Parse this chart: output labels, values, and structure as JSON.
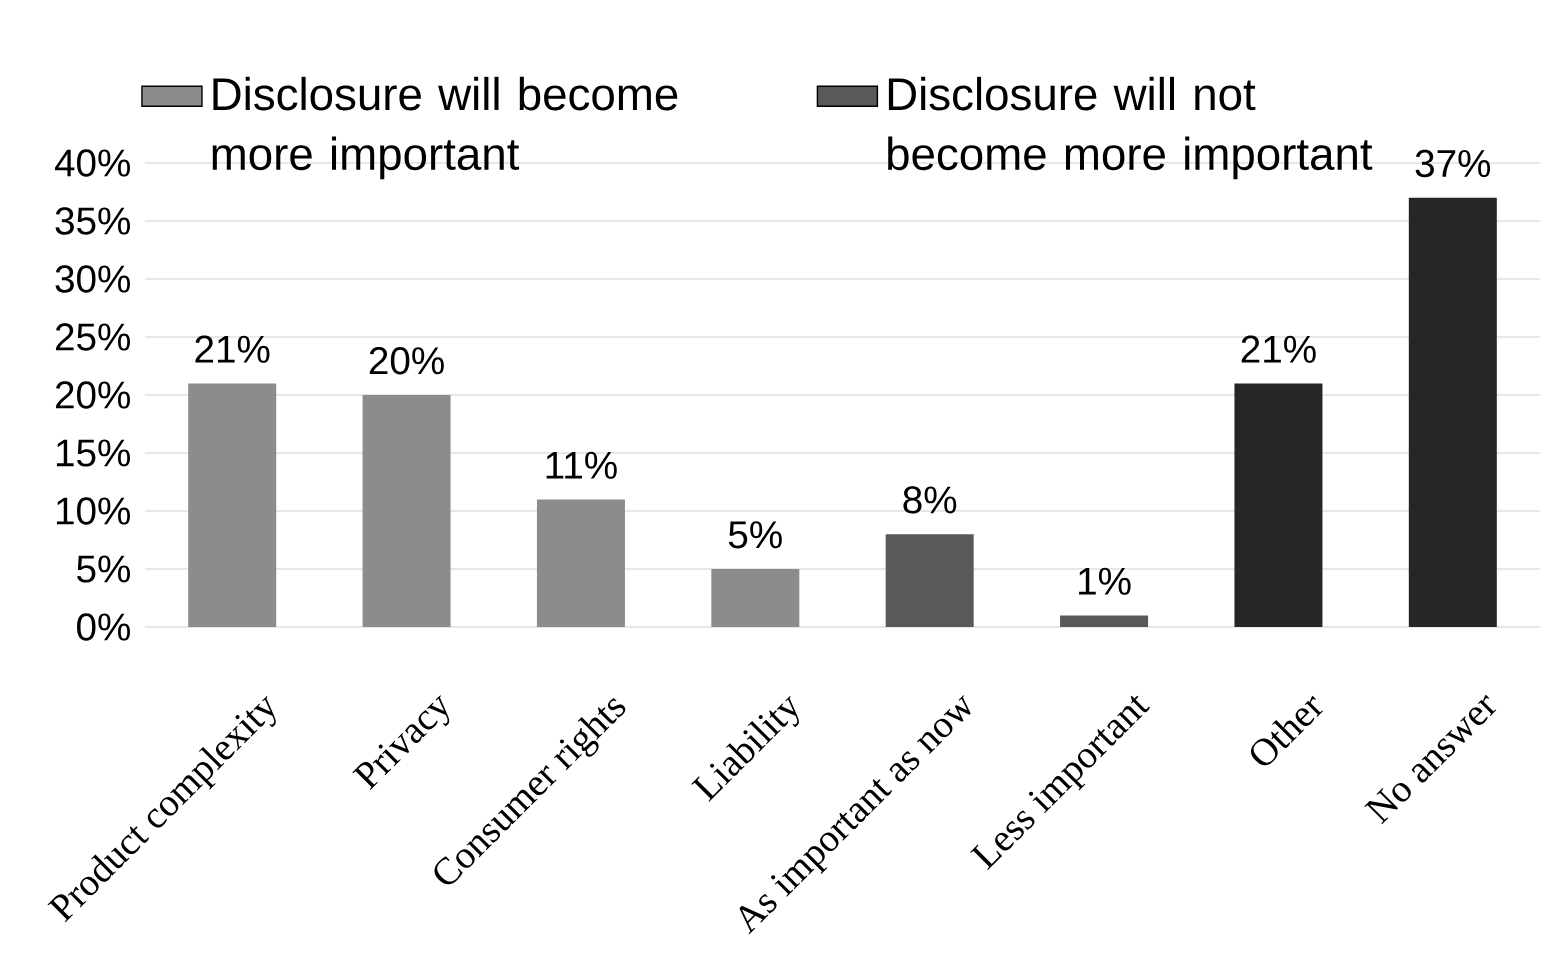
{
  "chart_data": {
    "type": "bar",
    "categories": [
      "Product complexity",
      "Privacy",
      "Consumer rights",
      "Liability",
      "As important as now",
      "Less important",
      "Other",
      "No answer"
    ],
    "series": [
      {
        "name": "Disclosure will become more important",
        "color": "#8c8c8c",
        "values": [
          21,
          20,
          11,
          5,
          null,
          null,
          null,
          null
        ],
        "value_labels": [
          "21%",
          "20%",
          "11%",
          "5%",
          null,
          null,
          null,
          null
        ]
      },
      {
        "name": "Disclosure will not become more important",
        "color": "#595959",
        "values": [
          null,
          null,
          null,
          null,
          8,
          1,
          null,
          null
        ],
        "value_labels": [
          null,
          null,
          null,
          null,
          "8%",
          "1%",
          null,
          null
        ]
      },
      {
        "color": "#262626",
        "values": [
          null,
          null,
          null,
          null,
          null,
          null,
          21,
          37
        ],
        "value_labels": [
          null,
          null,
          null,
          null,
          null,
          null,
          "21%",
          "37%"
        ]
      }
    ],
    "ylim": [
      0,
      40
    ],
    "yticks": [
      {
        "value": 0,
        "label": "0%"
      },
      {
        "value": 5,
        "label": "5%"
      },
      {
        "value": 10,
        "label": "10%"
      },
      {
        "value": 15,
        "label": "15%"
      },
      {
        "value": 20,
        "label": "20%"
      },
      {
        "value": 25,
        "label": "25%"
      },
      {
        "value": 30,
        "label": "30%"
      },
      {
        "value": 35,
        "label": "35%"
      },
      {
        "value": 40,
        "label": "40%"
      }
    ],
    "grid": "y",
    "legend": "top"
  }
}
